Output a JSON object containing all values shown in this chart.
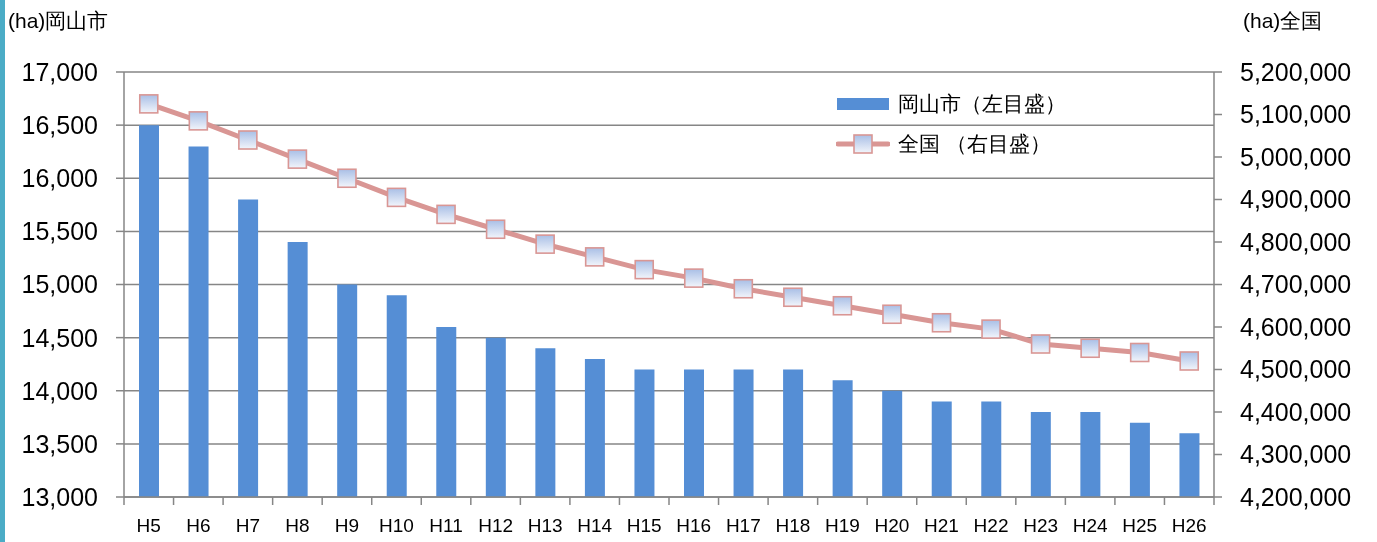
{
  "chart_data": {
    "type": "bar",
    "ylabel": "(ha)岡山市",
    "y2label": "(ha)全国",
    "categories": [
      "H5",
      "H6",
      "H7",
      "H8",
      "H9",
      "H10",
      "H11",
      "H12",
      "H13",
      "H14",
      "H15",
      "H16",
      "H17",
      "H18",
      "H19",
      "H20",
      "H21",
      "H22",
      "H23",
      "H24",
      "H25",
      "H26"
    ],
    "series": [
      {
        "name": "岡山市（左目盛）",
        "color": "#558ed5",
        "values": [
          16500,
          16300,
          15800,
          15400,
          15000,
          14900,
          14600,
          14500,
          14400,
          14300,
          14200,
          14200,
          14200,
          14200,
          14100,
          14000,
          13900,
          13900,
          13800,
          13800,
          13700,
          13600
        ]
      },
      {
        "name": "全国 （右目盛）",
        "type": "line",
        "axis": "y2",
        "color": "#d99694",
        "values": [
          5125000,
          5085000,
          5040000,
          4995000,
          4950000,
          4905000,
          4865000,
          4830000,
          4795000,
          4765000,
          4735000,
          4715000,
          4690000,
          4670000,
          4650000,
          4630000,
          4610000,
          4595000,
          4560000,
          4550000,
          4540000,
          4520000
        ]
      }
    ],
    "ylim": [
      13000,
      17000
    ],
    "yticks": [
      {
        "value": 13000,
        "label": "13,000"
      },
      {
        "value": 13500,
        "label": "13,500"
      },
      {
        "value": 14000,
        "label": "14,000"
      },
      {
        "value": 14500,
        "label": "14,500"
      },
      {
        "value": 15000,
        "label": "15,000"
      },
      {
        "value": 15500,
        "label": "15,500"
      },
      {
        "value": 16000,
        "label": "16,000"
      },
      {
        "value": 16500,
        "label": "16,500"
      },
      {
        "value": 17000,
        "label": "17,000"
      }
    ],
    "y2lim": [
      4200000,
      5200000
    ],
    "y2ticks": [
      {
        "value": 4200000,
        "label": "4,200,000"
      },
      {
        "value": 4300000,
        "label": "4,300,000"
      },
      {
        "value": 4400000,
        "label": "4,400,000"
      },
      {
        "value": 4500000,
        "label": "4,500,000"
      },
      {
        "value": 4600000,
        "label": "4,600,000"
      },
      {
        "value": 4700000,
        "label": "4,700,000"
      },
      {
        "value": 4800000,
        "label": "4,800,000"
      },
      {
        "value": 4900000,
        "label": "4,900,000"
      },
      {
        "value": 5000000,
        "label": "5,000,000"
      },
      {
        "value": 5100000,
        "label": "5,100,000"
      },
      {
        "value": 5200000,
        "label": "5,200,000"
      }
    ],
    "grid": "y",
    "legend": "top right",
    "marker": "square"
  }
}
